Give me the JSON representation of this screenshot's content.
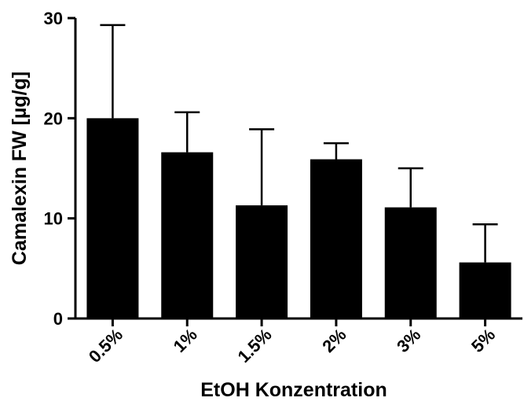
{
  "chart_data": {
    "type": "bar",
    "title": "",
    "xlabel": "EtOH Konzentration",
    "ylabel": "Camalexin FW [µg/g]",
    "categories": [
      "0.5%",
      "1%",
      "1.5%",
      "2%",
      "3%",
      "5%"
    ],
    "values": [
      20.0,
      16.6,
      11.3,
      15.9,
      11.1,
      5.6
    ],
    "error_upper": [
      9.3,
      4.0,
      7.6,
      1.6,
      3.9,
      3.8
    ],
    "ylim": [
      0,
      30
    ],
    "yticks": [
      "0",
      "10",
      "20",
      "30"
    ],
    "bar_color": "#000000",
    "grid": false,
    "legend": "none"
  }
}
